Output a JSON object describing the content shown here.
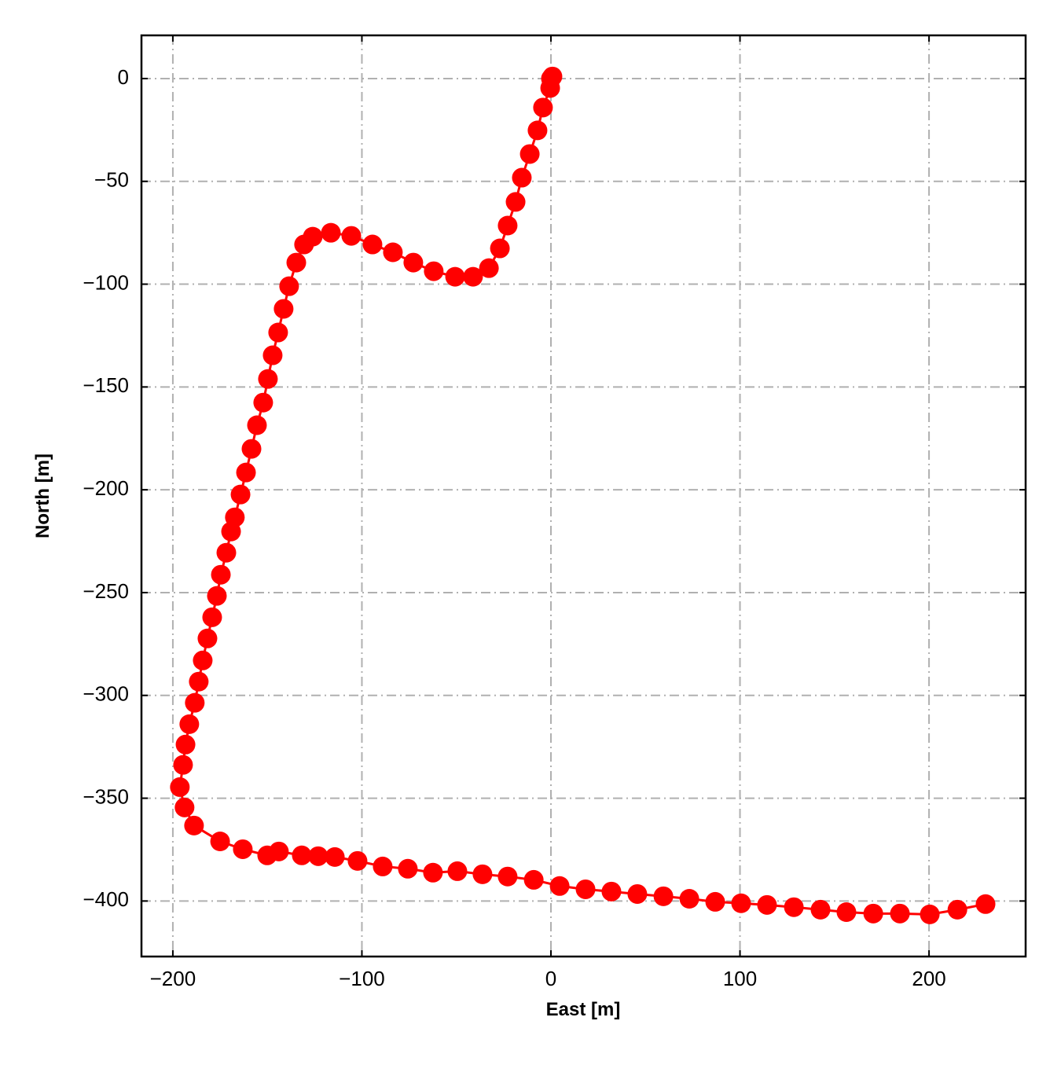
{
  "chart_data": {
    "type": "line",
    "xlabel": "East [m]",
    "ylabel": "North [m]",
    "xlim": [
      -216.6,
      251.1
    ],
    "ylim": [
      -427,
      21
    ],
    "xticks": [
      {
        "value": -200,
        "label": "−200"
      },
      {
        "value": -100,
        "label": "−100"
      },
      0,
      100,
      200
    ],
    "yticks": [
      0,
      {
        "value": -50,
        "label": "−50"
      },
      {
        "value": -100,
        "label": "−100"
      },
      {
        "value": -150,
        "label": "−150"
      },
      {
        "value": -200,
        "label": "−200"
      },
      {
        "value": -250,
        "label": "−250"
      },
      {
        "value": -300,
        "label": "−300"
      },
      {
        "value": -350,
        "label": "−350"
      },
      {
        "value": -400,
        "label": "−400"
      }
    ],
    "grid": true,
    "color": "#ff0000",
    "x": [
      0.8,
      0,
      -0.4,
      -4.2,
      -7.1,
      -11.2,
      -15.4,
      -18.7,
      -22.9,
      -27,
      -32.8,
      -41.2,
      -50.7,
      -62,
      -72.8,
      -83.6,
      -94.4,
      -105.6,
      -116.4,
      -126,
      -130.6,
      -134.7,
      -138.5,
      -141.4,
      -144.3,
      -147.2,
      -149.7,
      -152.2,
      -155.5,
      -158.4,
      -161.3,
      -164.2,
      -167.2,
      -169.2,
      -171.7,
      -174.6,
      -176.7,
      -179.2,
      -181.7,
      -184.2,
      -186.3,
      -188.4,
      -191.3,
      -193.3,
      -194.6,
      -196.3,
      -193.8,
      -188.8,
      -175,
      -163,
      -150.1,
      -143.9,
      -131.8,
      -123.1,
      -114.3,
      -102.3,
      -89,
      -75.7,
      -62.4,
      -49.5,
      -36.2,
      -22.9,
      -9.1,
      4.6,
      18.3,
      32,
      45.7,
      59.5,
      73.2,
      86.9,
      100.6,
      114.3,
      128.5,
      142.6,
      156.3,
      170.5,
      184.6,
      200.4,
      215,
      229.9
    ],
    "values": [
      1,
      0,
      -4.6,
      -14.1,
      -25.2,
      -36.7,
      -48.2,
      -60,
      -71.5,
      -82.6,
      -92.2,
      -96.4,
      -96.4,
      -93.7,
      -89.5,
      -84.5,
      -80.7,
      -76.5,
      -75,
      -76.9,
      -80.7,
      -89.5,
      -101,
      -112,
      -123.5,
      -134.6,
      -146.1,
      -157.6,
      -168.6,
      -180.1,
      -191.6,
      -202.3,
      -213.4,
      -220.3,
      -230.6,
      -241.3,
      -251.6,
      -262,
      -272.3,
      -283,
      -293.3,
      -303.6,
      -314,
      -323.9,
      -333.8,
      -344.6,
      -354.5,
      -363.3,
      -371,
      -374.8,
      -377.8,
      -375.9,
      -377.8,
      -378.2,
      -378.6,
      -380.5,
      -383.2,
      -384.3,
      -386.2,
      -385.5,
      -387,
      -388.1,
      -389.7,
      -392.7,
      -394.3,
      -395.4,
      -396.6,
      -397.7,
      -398.9,
      -400.4,
      -401.1,
      -401.9,
      -403,
      -404.2,
      -405.4,
      -406.1,
      -406.1,
      -406.5,
      -404.2,
      -401.5
    ]
  }
}
